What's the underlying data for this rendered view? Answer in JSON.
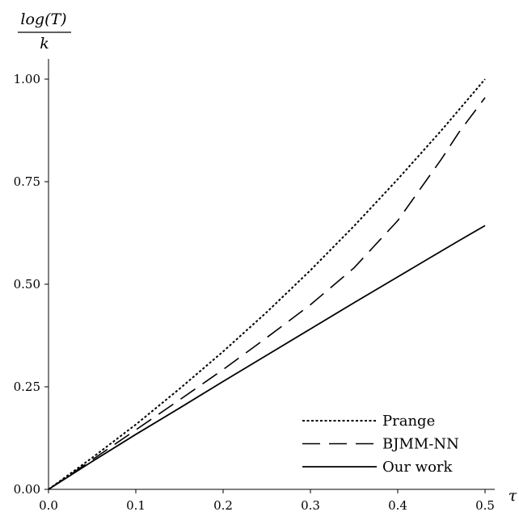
{
  "chart_data": {
    "type": "line",
    "title": "",
    "xlabel": "τ",
    "ylabel_numerator": "log(T)",
    "ylabel_denominator": "k",
    "xlim": [
      0,
      0.5
    ],
    "ylim": [
      0,
      1.0
    ],
    "x_ticks": [
      "0.0",
      "0.1",
      "0.2",
      "0.3",
      "0.4",
      "0.5"
    ],
    "y_ticks": [
      "0.00",
      "0.25",
      "0.50",
      "0.75",
      "1.00"
    ],
    "grid": false,
    "legend_position": "bottom-right",
    "x": [
      0.0,
      0.05,
      0.1,
      0.15,
      0.2,
      0.25,
      0.3,
      0.35,
      0.4,
      0.45,
      0.47,
      0.5
    ],
    "series": [
      {
        "name": "Prange",
        "style": "dotted",
        "values": [
          0.0,
          0.077,
          0.158,
          0.245,
          0.336,
          0.432,
          0.534,
          0.642,
          0.756,
          0.875,
          0.925,
          1.0
        ]
      },
      {
        "name": "BJMM-NN",
        "style": "dashed",
        "values": [
          0.0,
          0.072,
          0.145,
          0.218,
          0.292,
          0.37,
          0.45,
          0.54,
          0.655,
          0.805,
          0.87,
          0.955
        ]
      },
      {
        "name": "Our work",
        "style": "solid",
        "values": [
          0.0,
          0.068,
          0.134,
          0.198,
          0.263,
          0.327,
          0.391,
          0.455,
          0.518,
          0.581,
          0.606,
          0.643
        ]
      }
    ]
  }
}
